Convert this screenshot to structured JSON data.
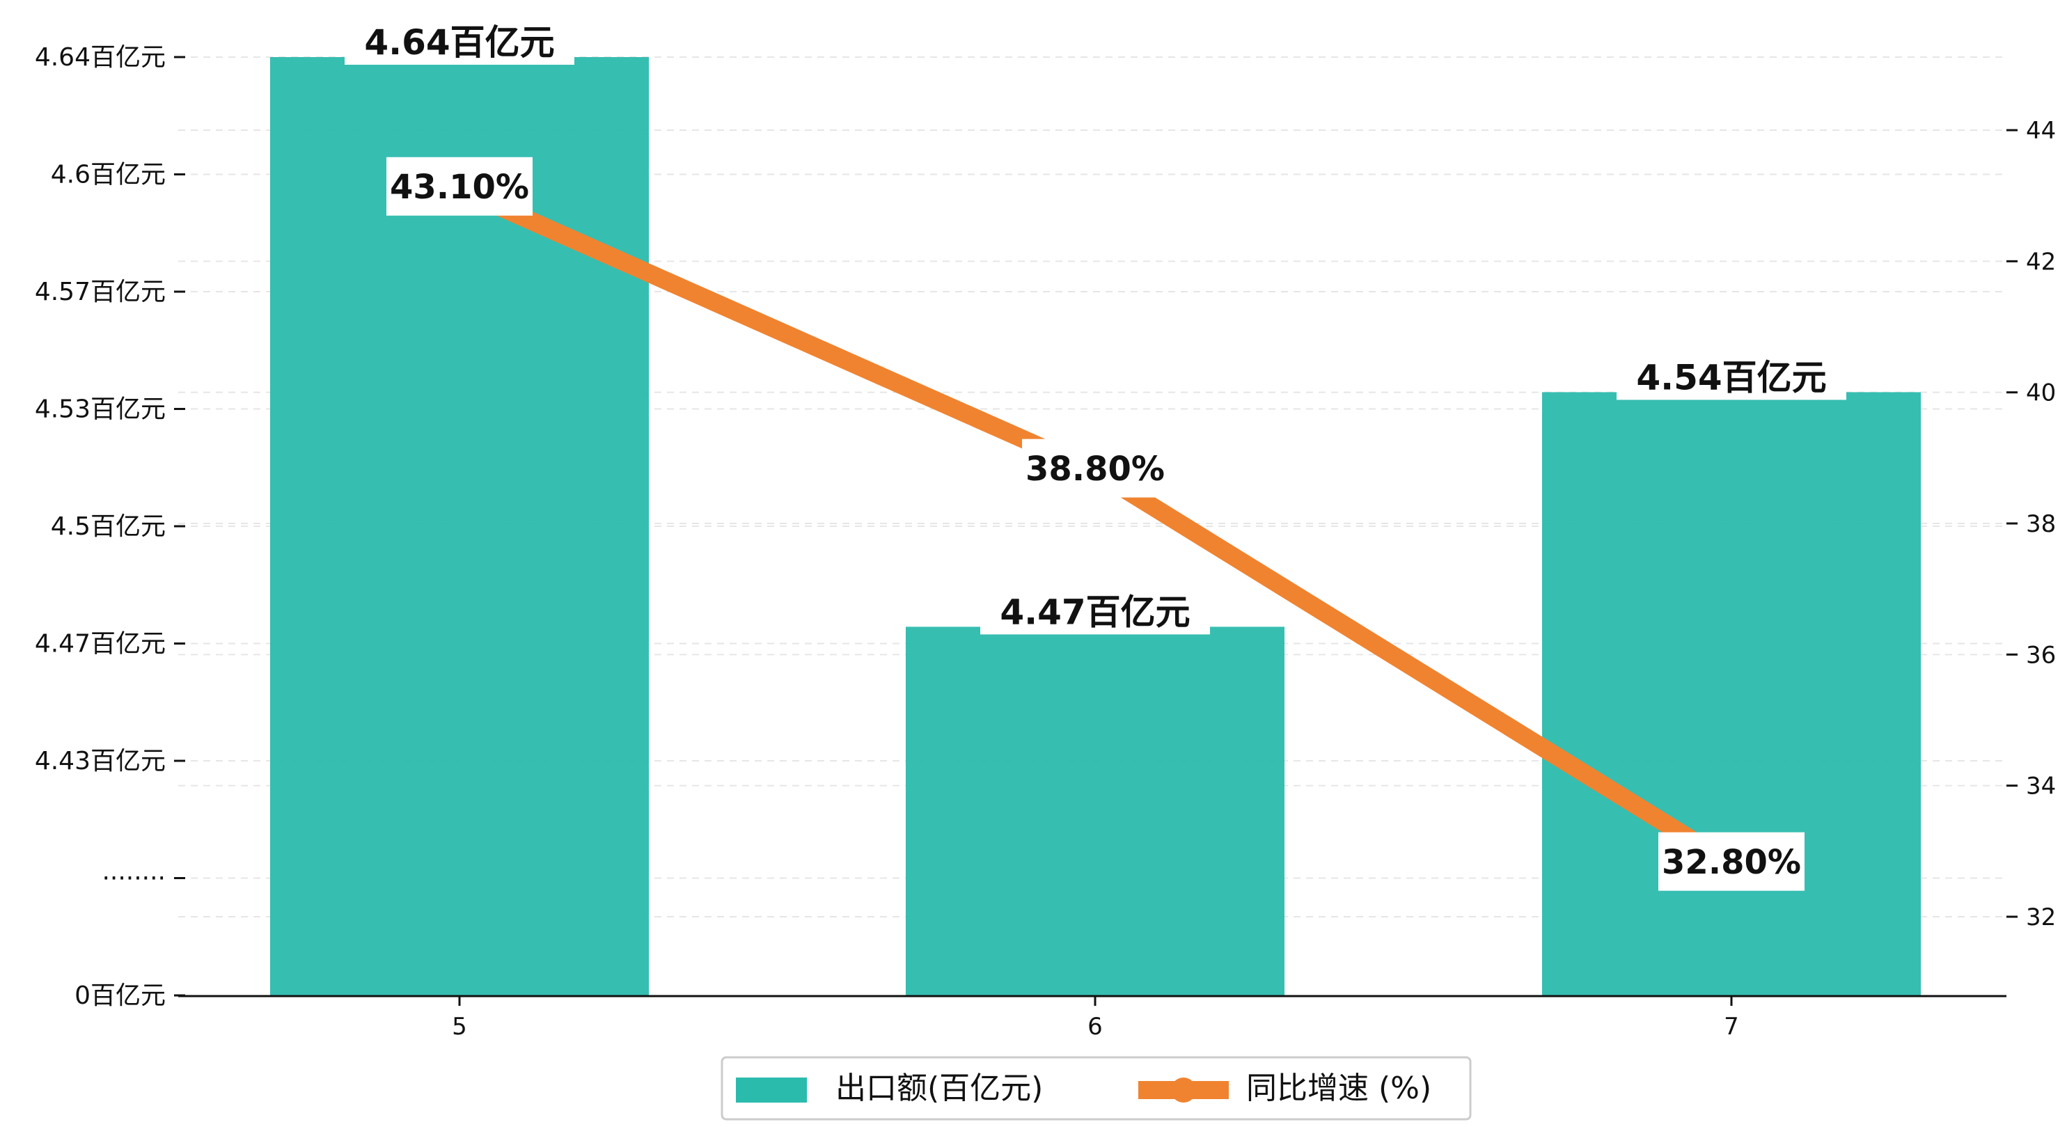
{
  "chart_data": {
    "type": "bar",
    "categories": [
      "5",
      "6",
      "7"
    ],
    "series": [
      {
        "name": "出口额(百亿元)",
        "type": "bar",
        "axis": "left",
        "color": "#2bbbad",
        "values": [
          4.64,
          4.47,
          4.54
        ],
        "labels": [
          "4.64百亿元",
          "4.47百亿元",
          "4.54百亿元"
        ]
      },
      {
        "name": "同比增速 (%)",
        "type": "line",
        "axis": "right",
        "color": "#f08330",
        "values": [
          43.1,
          38.8,
          32.8
        ],
        "labels": [
          "43.10%",
          "38.80%",
          "32.80%"
        ]
      }
    ],
    "left_axis": {
      "broken": true,
      "ticks": [
        {
          "value": 4.64,
          "label": "4.64百亿元"
        },
        {
          "value": 4.6,
          "label": "4.6百亿元"
        },
        {
          "value": 4.57,
          "label": "4.57百亿元"
        },
        {
          "value": 4.53,
          "label": "4.53百亿元"
        },
        {
          "value": 4.5,
          "label": "4.5百亿元"
        },
        {
          "value": 4.47,
          "label": "4.47百亿元"
        },
        {
          "value": 4.43,
          "label": "4.43百亿元"
        },
        {
          "value": null,
          "label": "········"
        },
        {
          "value": 0,
          "label": "0百亿元"
        }
      ]
    },
    "right_axis": {
      "ticks": [
        "32",
        "34",
        "36",
        "38",
        "40",
        "42",
        "44"
      ],
      "ylim": [
        30.9,
        45.5
      ]
    },
    "grid": true,
    "legend_position": "bottom-center"
  }
}
